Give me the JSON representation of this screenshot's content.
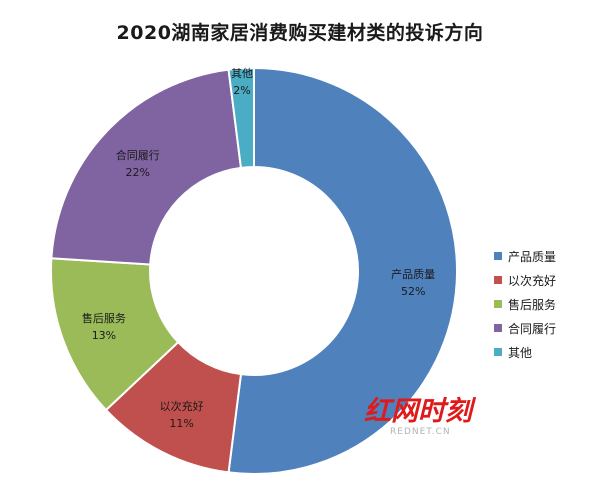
{
  "chart_data": {
    "type": "pie",
    "title": "2020湖南家居消费购买建材类的投诉方向",
    "categories": [
      "产品质量",
      "以次充好",
      "售后服务",
      "合同履行",
      "其他"
    ],
    "values": [
      52,
      11,
      13,
      22,
      2
    ],
    "value_labels": [
      "52%",
      "11%",
      "13%",
      "22%",
      "2%"
    ],
    "colors": [
      "#4f81bd",
      "#c0504d",
      "#9bbb59",
      "#8064a2",
      "#4bacc6"
    ],
    "donut": true,
    "legend_position": "right"
  },
  "watermark": {
    "logo_text": "红网时刻",
    "sub_text": "REDNET.CN"
  }
}
